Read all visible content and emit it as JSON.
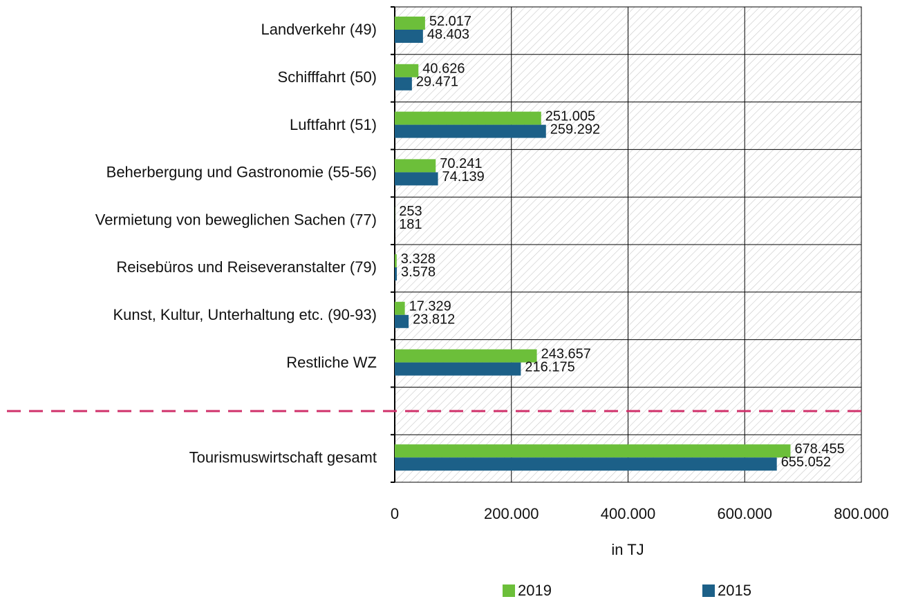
{
  "chart_data": {
    "type": "bar",
    "orientation": "horizontal",
    "categories": [
      "Landverkehr (49)",
      "Schifffahrt (50)",
      "Luftfahrt (51)",
      "Beherbergung und Gastronomie (55-56)",
      "Vermietung von beweglichen Sachen (77)",
      "Reisebüros und Reiseveranstalter (79)",
      "Kunst, Kultur, Unterhaltung etc. (90-93)",
      "Restliche WZ",
      null,
      "Tourismuswirtschaft gesamt"
    ],
    "series": [
      {
        "name": "2019",
        "color": "#6cbf3a",
        "values": [
          52017,
          40626,
          251005,
          70241,
          253,
          3328,
          17329,
          243657,
          null,
          678455
        ],
        "value_labels": [
          "52.017",
          "40.626",
          "251.005",
          "70.241",
          "253",
          "3.328",
          "17.329",
          "243.657",
          null,
          "678.455"
        ]
      },
      {
        "name": "2015",
        "color": "#1c6088",
        "values": [
          48403,
          29471,
          259292,
          74139,
          181,
          3578,
          23812,
          216175,
          null,
          655052
        ],
        "value_labels": [
          "48.403",
          "29.471",
          "259.292",
          "74.139",
          "181",
          "3.578",
          "23.812",
          "216.175",
          null,
          "655.052"
        ]
      }
    ],
    "xlabel": "in TJ",
    "xlim": [
      0,
      800000
    ],
    "xticks": [
      0,
      {
        "value": 200000,
        "label": "200.000"
      },
      {
        "value": 400000,
        "label": "400.000"
      },
      {
        "value": 600000,
        "label": "600.000"
      },
      {
        "value": 800000,
        "label": "800.000"
      }
    ],
    "grid": true,
    "legend": "bottom"
  }
}
